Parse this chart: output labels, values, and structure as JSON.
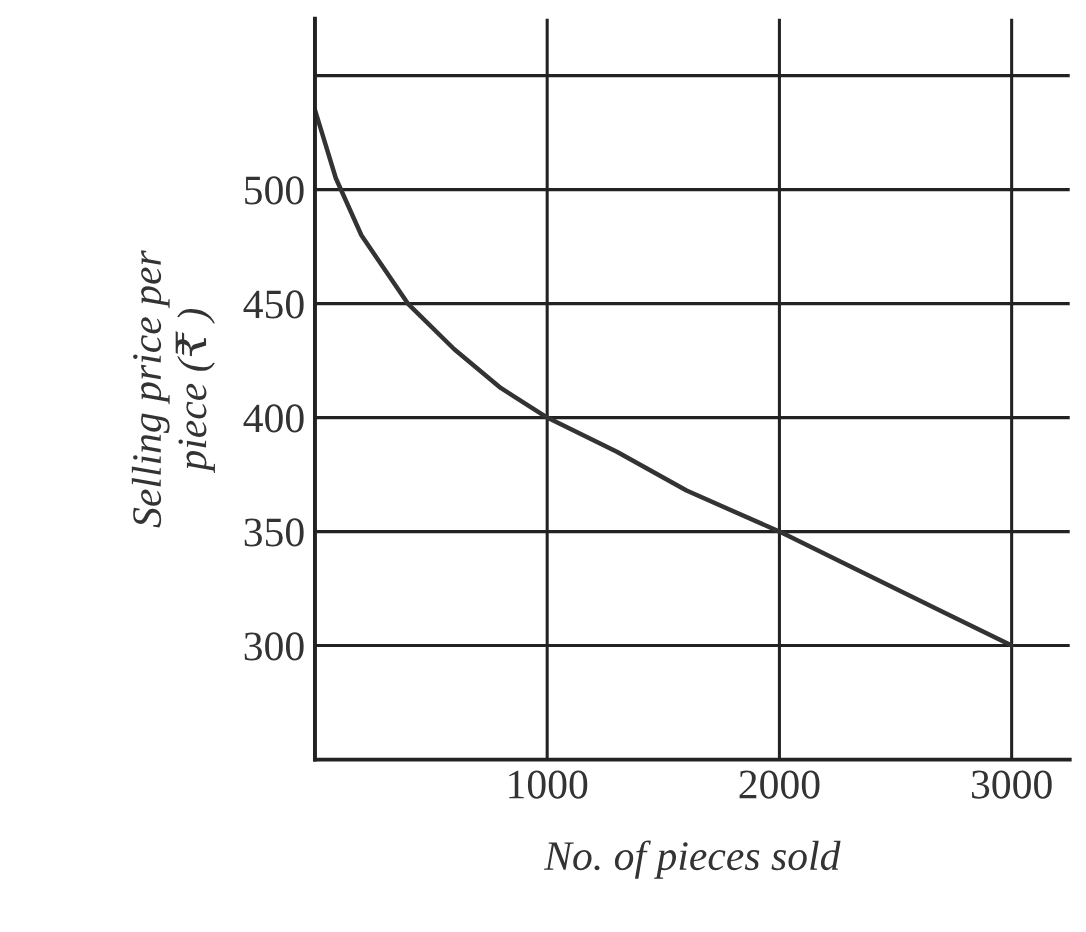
{
  "chart_data": {
    "type": "line",
    "xlabel": "No. of pieces sold",
    "ylabel": "Selling price per\npiece (₹ )",
    "x": [
      0,
      90,
      200,
      400,
      600,
      800,
      1000,
      1300,
      1600,
      2000,
      2400,
      2700,
      3000
    ],
    "series": [
      {
        "color": "#333333",
        "values": [
          535,
          505,
          480,
          450,
          430,
          413,
          400,
          385,
          368,
          350,
          330,
          315,
          300
        ]
      }
    ],
    "xlim": [
      0,
      3250
    ],
    "xticks": [
      {
        "value": 0,
        "label": null
      },
      1000,
      2000,
      3000
    ],
    "ylim": [
      250,
      575
    ],
    "yticks": [
      300,
      350,
      400,
      450,
      500,
      {
        "value": 550,
        "label": null
      }
    ],
    "grid": true,
    "legend": false,
    "marker": "none",
    "line_style": "solid"
  }
}
